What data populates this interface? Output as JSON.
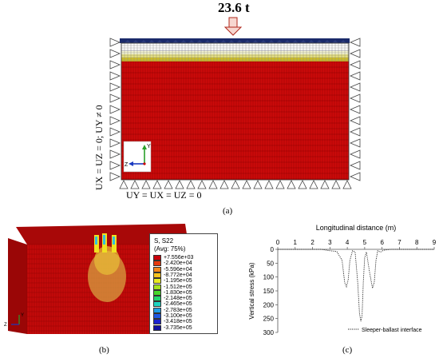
{
  "panel_a": {
    "load_label": "23.6 t",
    "bc_left": "Uₓ = Uᵤ = 0; Uᵧ ≠ 0",
    "bc_left_display": "UX = UZ = 0; UY ≠ 0",
    "bc_bottom": "UY = UX = UZ = 0",
    "label": "(a)",
    "axes": {
      "y": "Y",
      "z": "Z"
    }
  },
  "panel_b": {
    "legend_title_1": "S, S22",
    "legend_title_2": "(Avg: 75%)",
    "legend": [
      {
        "value": "+7.556e+03",
        "color": "#c8000a"
      },
      {
        "value": "-2.420e+04",
        "color": "#e63a0e"
      },
      {
        "value": "-5.596e+04",
        "color": "#f5861a"
      },
      {
        "value": "-8.772e+04",
        "color": "#f6c41f"
      },
      {
        "value": "-1.195e+05",
        "color": "#e9eb20"
      },
      {
        "value": "-1.512e+05",
        "color": "#a6e41e"
      },
      {
        "value": "-1.830e+05",
        "color": "#46d62a"
      },
      {
        "value": "-2.148e+05",
        "color": "#21d66d"
      },
      {
        "value": "-2.465e+05",
        "color": "#1ed4c2"
      },
      {
        "value": "-2.783e+05",
        "color": "#1f9ee6"
      },
      {
        "value": "-3.100e+05",
        "color": "#1f58e3"
      },
      {
        "value": "-3.418e+05",
        "color": "#1a22d0"
      },
      {
        "value": "-3.735e+05",
        "color": "#1010a0"
      }
    ],
    "axes": {
      "y": "Y",
      "z": "Z"
    },
    "label": "(b)"
  },
  "panel_c": {
    "label": "(c)",
    "legend_entry": "Sleeper-ballast interface"
  },
  "chart_data": {
    "type": "line",
    "title": "",
    "xlabel": "Longitudinal distance (m)",
    "ylabel": "Vertical stress (kPa)",
    "xlim": [
      0,
      9
    ],
    "ylim": [
      0,
      300
    ],
    "y_inverted": true,
    "x_ticks": [
      0,
      1,
      2,
      3,
      4,
      5,
      6,
      7,
      8,
      9
    ],
    "y_ticks": [
      0,
      50,
      100,
      150,
      200,
      250,
      300
    ],
    "series": [
      {
        "name": "Sleeper-ballast interface",
        "style": "dotted",
        "x": [
          0,
          2.5,
          3.0,
          3.4,
          3.7,
          3.85,
          3.95,
          4.05,
          4.15,
          4.3,
          4.45,
          4.6,
          4.7,
          4.78,
          4.85,
          4.92,
          5.0,
          5.1,
          5.3,
          5.45,
          5.55,
          5.65,
          5.75,
          5.9,
          6.1,
          6.5,
          9
        ],
        "y": [
          0,
          0,
          5,
          8,
          40,
          120,
          135,
          110,
          40,
          5,
          10,
          120,
          230,
          260,
          240,
          120,
          30,
          10,
          90,
          140,
          120,
          40,
          5,
          10,
          3,
          0,
          0
        ]
      }
    ]
  }
}
